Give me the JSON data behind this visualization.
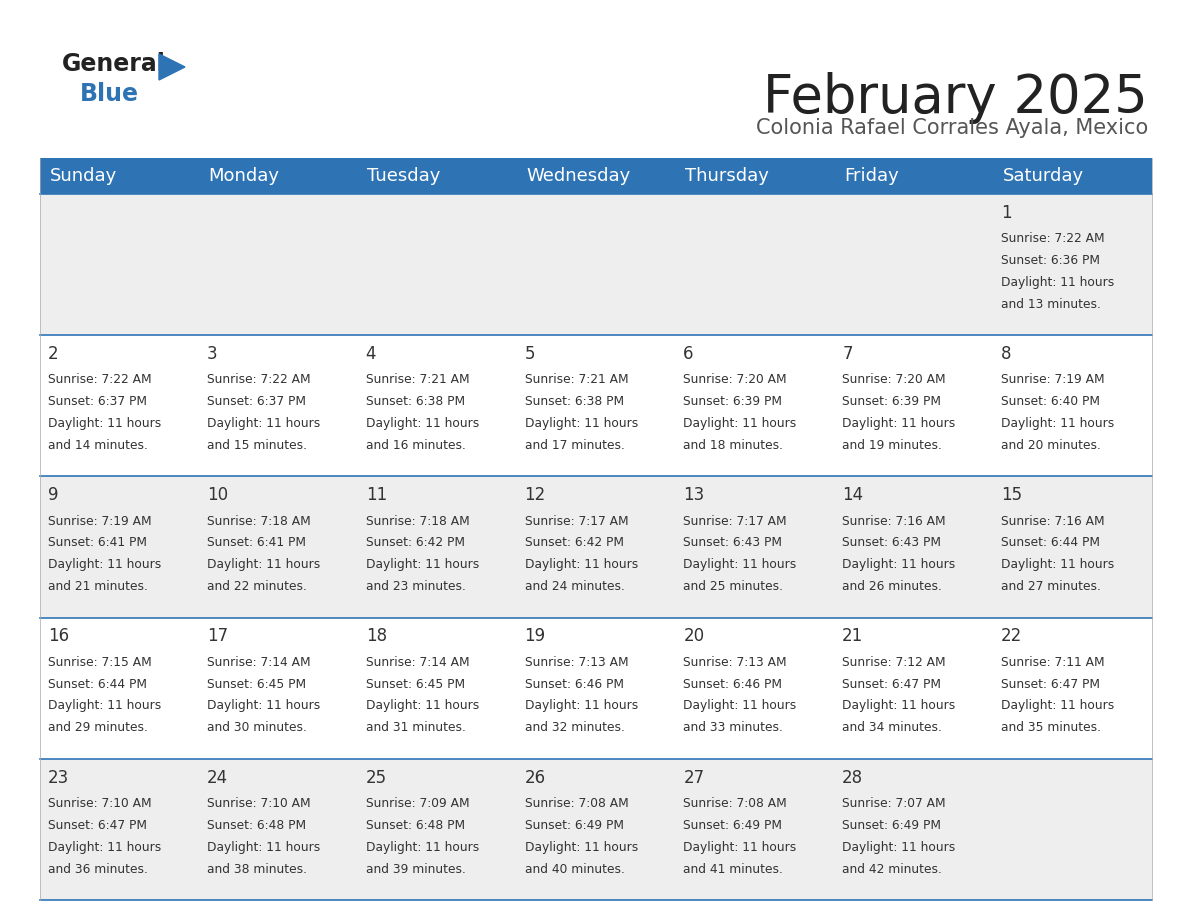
{
  "title": "February 2025",
  "subtitle": "Colonia Rafael Corrales Ayala, Mexico",
  "header_color": "#2e74b5",
  "header_text_color": "#ffffff",
  "cell_bg_row0": "#eeeeee",
  "cell_bg_row1": "#ffffff",
  "cell_bg_row2": "#eeeeee",
  "cell_bg_row3": "#ffffff",
  "cell_bg_row4": "#eeeeee",
  "day_headers": [
    "Sunday",
    "Monday",
    "Tuesday",
    "Wednesday",
    "Thursday",
    "Friday",
    "Saturday"
  ],
  "title_fontsize": 38,
  "subtitle_fontsize": 15,
  "header_fontsize": 13,
  "day_num_fontsize": 12,
  "info_fontsize": 8.8,
  "line_color": "#2e74b5",
  "text_color": "#333333",
  "logo_general_color": "#222222",
  "logo_blue_color": "#2e74b5",
  "logo_triangle_color": "#2e74b5",
  "calendar_data": [
    [
      null,
      null,
      null,
      null,
      null,
      null,
      {
        "day": 1,
        "sunrise": "7:22 AM",
        "sunset": "6:36 PM",
        "daylight": "11 hours\nand 13 minutes."
      }
    ],
    [
      {
        "day": 2,
        "sunrise": "7:22 AM",
        "sunset": "6:37 PM",
        "daylight": "11 hours\nand 14 minutes."
      },
      {
        "day": 3,
        "sunrise": "7:22 AM",
        "sunset": "6:37 PM",
        "daylight": "11 hours\nand 15 minutes."
      },
      {
        "day": 4,
        "sunrise": "7:21 AM",
        "sunset": "6:38 PM",
        "daylight": "11 hours\nand 16 minutes."
      },
      {
        "day": 5,
        "sunrise": "7:21 AM",
        "sunset": "6:38 PM",
        "daylight": "11 hours\nand 17 minutes."
      },
      {
        "day": 6,
        "sunrise": "7:20 AM",
        "sunset": "6:39 PM",
        "daylight": "11 hours\nand 18 minutes."
      },
      {
        "day": 7,
        "sunrise": "7:20 AM",
        "sunset": "6:39 PM",
        "daylight": "11 hours\nand 19 minutes."
      },
      {
        "day": 8,
        "sunrise": "7:19 AM",
        "sunset": "6:40 PM",
        "daylight": "11 hours\nand 20 minutes."
      }
    ],
    [
      {
        "day": 9,
        "sunrise": "7:19 AM",
        "sunset": "6:41 PM",
        "daylight": "11 hours\nand 21 minutes."
      },
      {
        "day": 10,
        "sunrise": "7:18 AM",
        "sunset": "6:41 PM",
        "daylight": "11 hours\nand 22 minutes."
      },
      {
        "day": 11,
        "sunrise": "7:18 AM",
        "sunset": "6:42 PM",
        "daylight": "11 hours\nand 23 minutes."
      },
      {
        "day": 12,
        "sunrise": "7:17 AM",
        "sunset": "6:42 PM",
        "daylight": "11 hours\nand 24 minutes."
      },
      {
        "day": 13,
        "sunrise": "7:17 AM",
        "sunset": "6:43 PM",
        "daylight": "11 hours\nand 25 minutes."
      },
      {
        "day": 14,
        "sunrise": "7:16 AM",
        "sunset": "6:43 PM",
        "daylight": "11 hours\nand 26 minutes."
      },
      {
        "day": 15,
        "sunrise": "7:16 AM",
        "sunset": "6:44 PM",
        "daylight": "11 hours\nand 27 minutes."
      }
    ],
    [
      {
        "day": 16,
        "sunrise": "7:15 AM",
        "sunset": "6:44 PM",
        "daylight": "11 hours\nand 29 minutes."
      },
      {
        "day": 17,
        "sunrise": "7:14 AM",
        "sunset": "6:45 PM",
        "daylight": "11 hours\nand 30 minutes."
      },
      {
        "day": 18,
        "sunrise": "7:14 AM",
        "sunset": "6:45 PM",
        "daylight": "11 hours\nand 31 minutes."
      },
      {
        "day": 19,
        "sunrise": "7:13 AM",
        "sunset": "6:46 PM",
        "daylight": "11 hours\nand 32 minutes."
      },
      {
        "day": 20,
        "sunrise": "7:13 AM",
        "sunset": "6:46 PM",
        "daylight": "11 hours\nand 33 minutes."
      },
      {
        "day": 21,
        "sunrise": "7:12 AM",
        "sunset": "6:47 PM",
        "daylight": "11 hours\nand 34 minutes."
      },
      {
        "day": 22,
        "sunrise": "7:11 AM",
        "sunset": "6:47 PM",
        "daylight": "11 hours\nand 35 minutes."
      }
    ],
    [
      {
        "day": 23,
        "sunrise": "7:10 AM",
        "sunset": "6:47 PM",
        "daylight": "11 hours\nand 36 minutes."
      },
      {
        "day": 24,
        "sunrise": "7:10 AM",
        "sunset": "6:48 PM",
        "daylight": "11 hours\nand 38 minutes."
      },
      {
        "day": 25,
        "sunrise": "7:09 AM",
        "sunset": "6:48 PM",
        "daylight": "11 hours\nand 39 minutes."
      },
      {
        "day": 26,
        "sunrise": "7:08 AM",
        "sunset": "6:49 PM",
        "daylight": "11 hours\nand 40 minutes."
      },
      {
        "day": 27,
        "sunrise": "7:08 AM",
        "sunset": "6:49 PM",
        "daylight": "11 hours\nand 41 minutes."
      },
      {
        "day": 28,
        "sunrise": "7:07 AM",
        "sunset": "6:49 PM",
        "daylight": "11 hours\nand 42 minutes."
      },
      null
    ]
  ]
}
